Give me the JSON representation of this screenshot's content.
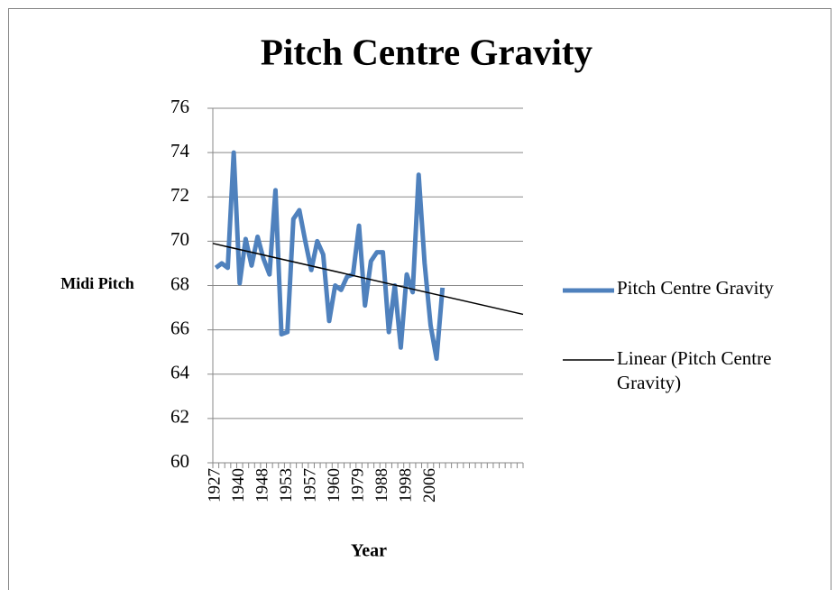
{
  "chart_data": {
    "type": "line",
    "title": "Pitch Centre Gravity",
    "y_label": "Midi Pitch",
    "x_label": "Year",
    "categories": [
      "1927",
      null,
      null,
      null,
      "1940",
      null,
      null,
      null,
      "1948",
      null,
      null,
      null,
      "1953",
      null,
      null,
      null,
      "1957",
      null,
      null,
      null,
      "1960",
      null,
      null,
      null,
      "1979",
      null,
      null,
      null,
      "1988",
      null,
      null,
      null,
      "1998",
      null,
      null,
      null,
      "2006",
      null,
      null,
      null,
      null,
      null,
      null,
      null,
      null,
      null,
      null,
      null,
      null,
      null,
      null,
      null
    ],
    "series": [
      {
        "name": "Pitch Centre Gravity",
        "color": "#4f81bd",
        "values": [
          68.8,
          69.0,
          68.8,
          74.0,
          68.1,
          70.1,
          68.9,
          70.2,
          69.2,
          68.5,
          72.3,
          65.8,
          65.9,
          71.0,
          71.4,
          70.0,
          68.7,
          70.0,
          69.4,
          66.4,
          68.0,
          67.8,
          68.4,
          68.5,
          70.7,
          67.1,
          69.1,
          69.5,
          69.5,
          65.9,
          68.0,
          65.2,
          68.5,
          67.7,
          73.0,
          69.0,
          66.2,
          64.7,
          67.9,
          null,
          null,
          null,
          null,
          null,
          null,
          null,
          null,
          null,
          null,
          null,
          null,
          null
        ]
      }
    ],
    "trendline": {
      "name": "Linear (Pitch Centre Gravity)",
      "color": "#000000",
      "start": 69.9,
      "end": 66.7
    },
    "ylim": [
      60,
      76
    ],
    "yticks": [
      60,
      62,
      64,
      66,
      68,
      70,
      72,
      74,
      76
    ],
    "grid": true,
    "legend": "right"
  }
}
